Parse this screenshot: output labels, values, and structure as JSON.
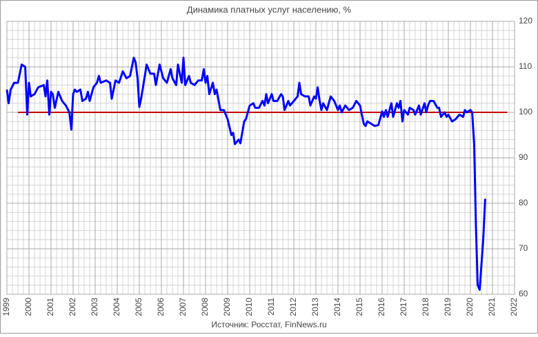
{
  "chart_data": {
    "type": "line",
    "title": "Динамика платных услуг населению, %",
    "source": "Источник: Росстат, FinNews.ru",
    "x": [
      1999.0,
      1999.08,
      1999.17,
      1999.33,
      1999.5,
      1999.67,
      1999.83,
      1999.92,
      2000.0,
      2000.08,
      2000.25,
      2000.42,
      2000.67,
      2000.75,
      2000.83,
      2000.92,
      2001.0,
      2001.08,
      2001.17,
      2001.33,
      2001.5,
      2001.67,
      2001.83,
      2001.92,
      2002.0,
      2002.08,
      2002.17,
      2002.33,
      2002.42,
      2002.58,
      2002.67,
      2002.75,
      2002.92,
      2003.08,
      2003.17,
      2003.25,
      2003.5,
      2003.67,
      2003.75,
      2003.92,
      2004.08,
      2004.25,
      2004.42,
      2004.58,
      2004.75,
      2004.83,
      2004.92,
      2005.0,
      2005.08,
      2005.25,
      2005.33,
      2005.5,
      2005.67,
      2005.75,
      2005.92,
      2006.08,
      2006.25,
      2006.42,
      2006.5,
      2006.67,
      2006.75,
      2006.92,
      2007.0,
      2007.08,
      2007.25,
      2007.33,
      2007.5,
      2007.67,
      2007.83,
      2007.92,
      2008.0,
      2008.08,
      2008.17,
      2008.33,
      2008.42,
      2008.5,
      2008.67,
      2008.83,
      2009.0,
      2009.17,
      2009.25,
      2009.33,
      2009.5,
      2009.58,
      2009.75,
      2009.83,
      2010.0,
      2010.17,
      2010.25,
      2010.42,
      2010.58,
      2010.67,
      2010.75,
      2010.83,
      2011.0,
      2011.08,
      2011.25,
      2011.42,
      2011.5,
      2011.58,
      2011.75,
      2011.83,
      2012.0,
      2012.17,
      2012.25,
      2012.33,
      2012.5,
      2012.67,
      2012.75,
      2012.92,
      2013.0,
      2013.08,
      2013.17,
      2013.25,
      2013.33,
      2013.5,
      2013.67,
      2013.83,
      2014.0,
      2014.08,
      2014.17,
      2014.33,
      2014.5,
      2014.67,
      2014.83,
      2015.0,
      2015.08,
      2015.17,
      2015.25,
      2015.33,
      2015.5,
      2015.67,
      2015.83,
      2016.0,
      2016.08,
      2016.17,
      2016.25,
      2016.42,
      2016.5,
      2016.67,
      2016.75,
      2016.83,
      2016.92,
      2017.0,
      2017.17,
      2017.25,
      2017.42,
      2017.5,
      2017.67,
      2017.75,
      2017.92,
      2018.0,
      2018.08,
      2018.17,
      2018.33,
      2018.5,
      2018.58,
      2018.67,
      2018.83,
      2018.92,
      2019.0,
      2019.17,
      2019.33,
      2019.5,
      2019.67,
      2019.75,
      2019.83,
      2020.0,
      2020.08,
      2020.17,
      2020.25,
      2020.33,
      2020.42,
      2020.58,
      2020.67
    ],
    "series": [
      {
        "color": "#0000ff",
        "values": [
          105,
          102,
          105,
          106.5,
          106.5,
          110.5,
          110,
          99.5,
          106.5,
          103.5,
          104,
          105.5,
          106,
          103.5,
          107,
          99.5,
          104.5,
          104,
          101,
          104.5,
          102.5,
          101.5,
          100,
          96.2,
          104,
          105,
          104.5,
          105,
          102.5,
          103,
          104.5,
          102.5,
          105.5,
          106.5,
          108,
          106.5,
          107,
          106.5,
          103,
          107,
          106.5,
          109,
          107.5,
          108,
          112,
          111,
          107.5,
          101.2,
          103,
          108,
          110.5,
          108.5,
          108.5,
          106,
          110.5,
          107.5,
          106.5,
          109.5,
          107.5,
          106,
          110.5,
          106.5,
          112,
          106,
          108,
          106.5,
          106,
          107,
          107,
          109.5,
          106.5,
          108,
          104,
          106.5,
          104,
          105,
          100.5,
          100.5,
          98.5,
          95,
          95.5,
          93,
          94,
          93.2,
          98,
          98.5,
          101.5,
          102,
          101,
          101,
          102.5,
          101.5,
          104,
          102,
          104,
          102.5,
          102.5,
          104,
          103.5,
          100.5,
          102.5,
          101.5,
          102.5,
          103.5,
          106.5,
          104,
          103.5,
          103.5,
          101.5,
          103.5,
          103,
          105.5,
          102.5,
          100.5,
          102,
          100.5,
          103.5,
          102.5,
          100.5,
          101.5,
          100,
          101.5,
          100.5,
          101,
          102.5,
          101.5,
          99.5,
          97.5,
          97,
          98,
          97.5,
          97,
          97.2,
          100.2,
          99,
          100.5,
          99,
          102,
          99,
          102,
          101,
          102.5,
          98,
          100.5,
          99.5,
          101,
          100.5,
          99.5,
          101.5,
          99.5,
          102,
          100,
          101.5,
          102.5,
          102.5,
          101,
          101,
          99,
          100,
          99,
          99.5,
          98,
          98.5,
          99.5,
          99,
          100.5,
          100,
          100.5,
          100,
          93,
          75,
          62,
          61,
          72,
          81
        ]
      }
    ],
    "reference_line": {
      "value": 100,
      "color": "#c00000",
      "from": 1999.5,
      "to": 2021.67
    },
    "xlim": [
      1999,
      2022
    ],
    "xticks": [
      1999,
      2000,
      2001,
      2002,
      2003,
      2004,
      2005,
      2006,
      2007,
      2008,
      2009,
      2010,
      2011,
      2012,
      2013,
      2014,
      2015,
      2016,
      2017,
      2018,
      2019,
      2020,
      2021,
      2022
    ],
    "ylim": [
      60,
      120
    ],
    "yticks": [
      60,
      70,
      80,
      90,
      100,
      110,
      120
    ],
    "grid": true,
    "minor_grid": true,
    "y_axis_side": "right"
  }
}
